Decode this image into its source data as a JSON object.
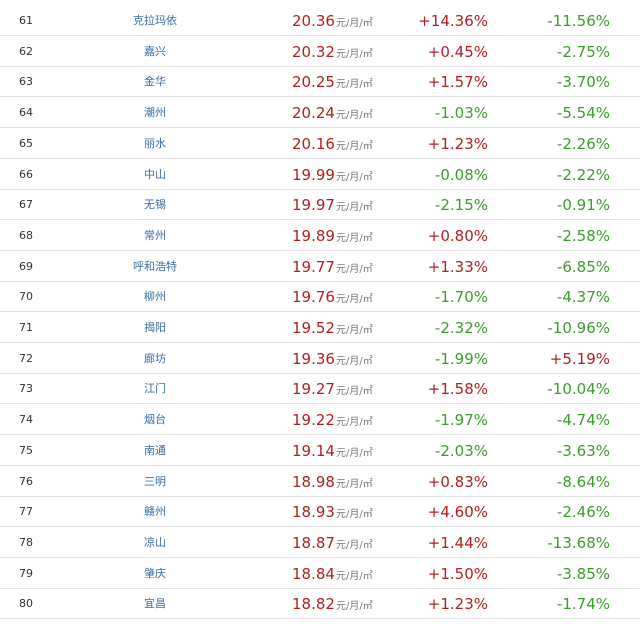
{
  "colors": {
    "up": "#b21f1f",
    "down": "#3e9b2f",
    "link": "#3a6ea5",
    "price": "#b21f1f"
  },
  "unit": "元/月/㎡",
  "rows": [
    {
      "rank": "61",
      "city": "克拉玛依",
      "price": "20.36",
      "mom": "+14.36%",
      "yoy": "-11.56%"
    },
    {
      "rank": "62",
      "city": "嘉兴",
      "price": "20.32",
      "mom": "+0.45%",
      "yoy": "-2.75%"
    },
    {
      "rank": "63",
      "city": "金华",
      "price": "20.25",
      "mom": "+1.57%",
      "yoy": "-3.70%"
    },
    {
      "rank": "64",
      "city": "潮州",
      "price": "20.24",
      "mom": "-1.03%",
      "yoy": "-5.54%"
    },
    {
      "rank": "65",
      "city": "丽水",
      "price": "20.16",
      "mom": "+1.23%",
      "yoy": "-2.26%"
    },
    {
      "rank": "66",
      "city": "中山",
      "price": "19.99",
      "mom": "-0.08%",
      "yoy": "-2.22%"
    },
    {
      "rank": "67",
      "city": "无锡",
      "price": "19.97",
      "mom": "-2.15%",
      "yoy": "-0.91%"
    },
    {
      "rank": "68",
      "city": "常州",
      "price": "19.89",
      "mom": "+0.80%",
      "yoy": "-2.58%"
    },
    {
      "rank": "69",
      "city": "呼和浩特",
      "price": "19.77",
      "mom": "+1.33%",
      "yoy": "-6.85%"
    },
    {
      "rank": "70",
      "city": "柳州",
      "price": "19.76",
      "mom": "-1.70%",
      "yoy": "-4.37%"
    },
    {
      "rank": "71",
      "city": "揭阳",
      "price": "19.52",
      "mom": "-2.32%",
      "yoy": "-10.96%"
    },
    {
      "rank": "72",
      "city": "廊坊",
      "price": "19.36",
      "mom": "-1.99%",
      "yoy": "+5.19%"
    },
    {
      "rank": "73",
      "city": "江门",
      "price": "19.27",
      "mom": "+1.58%",
      "yoy": "-10.04%"
    },
    {
      "rank": "74",
      "city": "烟台",
      "price": "19.22",
      "mom": "-1.97%",
      "yoy": "-4.74%"
    },
    {
      "rank": "75",
      "city": "南通",
      "price": "19.14",
      "mom": "-2.03%",
      "yoy": "-3.63%"
    },
    {
      "rank": "76",
      "city": "三明",
      "price": "18.98",
      "mom": "+0.83%",
      "yoy": "-8.64%"
    },
    {
      "rank": "77",
      "city": "赣州",
      "price": "18.93",
      "mom": "+4.60%",
      "yoy": "-2.46%"
    },
    {
      "rank": "78",
      "city": "凉山",
      "price": "18.87",
      "mom": "+1.44%",
      "yoy": "-13.68%"
    },
    {
      "rank": "79",
      "city": "肇庆",
      "price": "18.84",
      "mom": "+1.50%",
      "yoy": "-3.85%"
    },
    {
      "rank": "80",
      "city": "宜昌",
      "price": "18.82",
      "mom": "+1.23%",
      "yoy": "-1.74%"
    }
  ]
}
